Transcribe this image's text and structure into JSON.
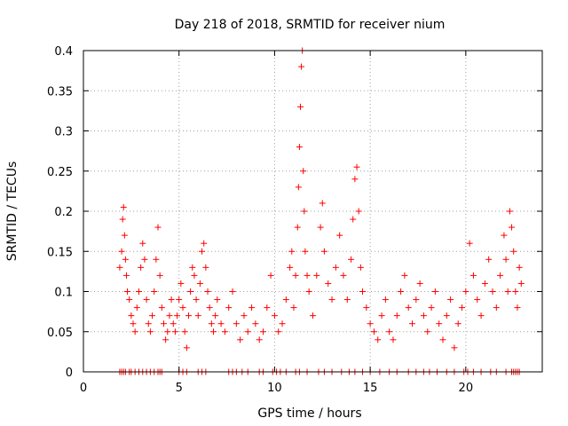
{
  "chart_data": {
    "type": "scatter",
    "title": "Day 218 of 2018, SRMTID for receiver nium",
    "xlabel": "GPS time / hours",
    "ylabel": "SRMTID / TECUs",
    "xlim": [
      0,
      24
    ],
    "ylim": [
      0,
      0.4
    ],
    "xticks": [
      0,
      5,
      10,
      15,
      20
    ],
    "xtick_labels": [
      "0",
      "5",
      "10",
      "15",
      "20"
    ],
    "yticks": [
      0,
      0.05,
      0.1,
      0.15,
      0.2,
      0.25,
      0.3,
      0.35,
      0.4
    ],
    "ytick_labels": [
      "0",
      "0.05",
      "0.1",
      "0.15",
      "0.2",
      "0.25",
      "0.3",
      "0.35",
      "0.4"
    ],
    "grid": true,
    "marker": "+",
    "color": "#ff0000",
    "series": [
      {
        "name": "SRMTID",
        "points": [
          [
            1.9,
            0.13
          ],
          [
            2.0,
            0.15
          ],
          [
            2.05,
            0.19
          ],
          [
            2.1,
            0.205
          ],
          [
            2.15,
            0.17
          ],
          [
            2.2,
            0.14
          ],
          [
            2.25,
            0.12
          ],
          [
            2.3,
            0.1
          ],
          [
            2.4,
            0.09
          ],
          [
            2.5,
            0.07
          ],
          [
            2.6,
            0.06
          ],
          [
            2.7,
            0.05
          ],
          [
            2.8,
            0.08
          ],
          [
            2.9,
            0.1
          ],
          [
            3.0,
            0.13
          ],
          [
            3.1,
            0.16
          ],
          [
            3.2,
            0.14
          ],
          [
            3.3,
            0.09
          ],
          [
            3.4,
            0.06
          ],
          [
            3.5,
            0.05
          ],
          [
            3.6,
            0.07
          ],
          [
            3.7,
            0.1
          ],
          [
            3.8,
            0.14
          ],
          [
            3.9,
            0.18
          ],
          [
            4.0,
            0.12
          ],
          [
            4.1,
            0.08
          ],
          [
            4.2,
            0.06
          ],
          [
            4.3,
            0.04
          ],
          [
            4.4,
            0.05
          ],
          [
            4.5,
            0.07
          ],
          [
            4.6,
            0.09
          ],
          [
            4.7,
            0.06
          ],
          [
            4.8,
            0.05
          ],
          [
            4.9,
            0.07
          ],
          [
            5.0,
            0.09
          ],
          [
            5.1,
            0.11
          ],
          [
            5.2,
            0.08
          ],
          [
            5.3,
            0.05
          ],
          [
            5.4,
            0.03
          ],
          [
            5.5,
            0.07
          ],
          [
            5.6,
            0.1
          ],
          [
            5.7,
            0.13
          ],
          [
            5.8,
            0.12
          ],
          [
            5.9,
            0.09
          ],
          [
            6.0,
            0.07
          ],
          [
            6.1,
            0.11
          ],
          [
            6.2,
            0.15
          ],
          [
            6.3,
            0.16
          ],
          [
            6.4,
            0.13
          ],
          [
            6.5,
            0.1
          ],
          [
            6.6,
            0.08
          ],
          [
            6.7,
            0.06
          ],
          [
            6.8,
            0.05
          ],
          [
            6.9,
            0.07
          ],
          [
            7.0,
            0.09
          ],
          [
            7.2,
            0.06
          ],
          [
            7.4,
            0.05
          ],
          [
            7.6,
            0.08
          ],
          [
            7.8,
            0.1
          ],
          [
            8.0,
            0.06
          ],
          [
            8.2,
            0.04
          ],
          [
            8.4,
            0.07
          ],
          [
            8.6,
            0.05
          ],
          [
            8.8,
            0.08
          ],
          [
            9.0,
            0.06
          ],
          [
            9.2,
            0.04
          ],
          [
            9.4,
            0.05
          ],
          [
            9.6,
            0.08
          ],
          [
            9.8,
            0.12
          ],
          [
            10.0,
            0.07
          ],
          [
            10.2,
            0.05
          ],
          [
            10.4,
            0.06
          ],
          [
            10.6,
            0.09
          ],
          [
            10.8,
            0.13
          ],
          [
            10.9,
            0.15
          ],
          [
            11.0,
            0.08
          ],
          [
            11.1,
            0.12
          ],
          [
            11.2,
            0.18
          ],
          [
            11.25,
            0.23
          ],
          [
            11.3,
            0.28
          ],
          [
            11.35,
            0.33
          ],
          [
            11.4,
            0.38
          ],
          [
            11.45,
            0.4
          ],
          [
            11.5,
            0.25
          ],
          [
            11.55,
            0.2
          ],
          [
            11.6,
            0.15
          ],
          [
            11.7,
            0.12
          ],
          [
            11.8,
            0.1
          ],
          [
            12.0,
            0.07
          ],
          [
            12.2,
            0.12
          ],
          [
            12.4,
            0.18
          ],
          [
            12.5,
            0.21
          ],
          [
            12.6,
            0.15
          ],
          [
            12.8,
            0.11
          ],
          [
            13.0,
            0.09
          ],
          [
            13.2,
            0.13
          ],
          [
            13.4,
            0.17
          ],
          [
            13.6,
            0.12
          ],
          [
            13.8,
            0.09
          ],
          [
            14.0,
            0.14
          ],
          [
            14.1,
            0.19
          ],
          [
            14.2,
            0.24
          ],
          [
            14.3,
            0.255
          ],
          [
            14.4,
            0.2
          ],
          [
            14.5,
            0.13
          ],
          [
            14.6,
            0.1
          ],
          [
            14.8,
            0.08
          ],
          [
            15.0,
            0.06
          ],
          [
            15.2,
            0.05
          ],
          [
            15.4,
            0.04
          ],
          [
            15.6,
            0.07
          ],
          [
            15.8,
            0.09
          ],
          [
            16.0,
            0.05
          ],
          [
            16.2,
            0.04
          ],
          [
            16.4,
            0.07
          ],
          [
            16.6,
            0.1
          ],
          [
            16.8,
            0.12
          ],
          [
            17.0,
            0.08
          ],
          [
            17.2,
            0.06
          ],
          [
            17.4,
            0.09
          ],
          [
            17.6,
            0.11
          ],
          [
            17.8,
            0.07
          ],
          [
            18.0,
            0.05
          ],
          [
            18.2,
            0.08
          ],
          [
            18.4,
            0.1
          ],
          [
            18.6,
            0.06
          ],
          [
            18.8,
            0.04
          ],
          [
            19.0,
            0.07
          ],
          [
            19.2,
            0.09
          ],
          [
            19.4,
            0.03
          ],
          [
            19.6,
            0.06
          ],
          [
            19.8,
            0.08
          ],
          [
            20.0,
            0.1
          ],
          [
            20.2,
            0.16
          ],
          [
            20.4,
            0.12
          ],
          [
            20.6,
            0.09
          ],
          [
            20.8,
            0.07
          ],
          [
            21.0,
            0.11
          ],
          [
            21.2,
            0.14
          ],
          [
            21.4,
            0.1
          ],
          [
            21.6,
            0.08
          ],
          [
            21.8,
            0.12
          ],
          [
            22.0,
            0.17
          ],
          [
            22.1,
            0.14
          ],
          [
            22.2,
            0.1
          ],
          [
            22.3,
            0.2
          ],
          [
            22.4,
            0.18
          ],
          [
            22.5,
            0.15
          ],
          [
            22.6,
            0.1
          ],
          [
            22.7,
            0.08
          ],
          [
            22.8,
            0.13
          ],
          [
            22.9,
            0.11
          ]
        ]
      }
    ],
    "zero_markers_x": [
      1.9,
      2.0,
      2.1,
      2.2,
      2.4,
      2.5,
      2.7,
      2.9,
      3.1,
      3.3,
      3.5,
      3.7,
      3.9,
      4.0,
      4.1,
      5.0,
      5.2,
      5.4,
      6.0,
      6.2,
      6.4,
      7.6,
      7.8,
      8.0,
      8.3,
      8.6,
      9.2,
      9.4,
      9.9,
      10.1,
      10.3,
      10.6,
      11.1,
      11.3,
      11.7,
      12.3,
      12.6,
      13.0,
      13.5,
      13.9,
      14.2,
      14.6,
      15.0,
      15.5,
      16.0,
      16.4,
      17.0,
      17.4,
      17.8,
      18.1,
      18.5,
      19.0,
      19.4,
      19.9,
      20.1,
      20.4,
      20.8,
      21.3,
      21.6,
      22.1,
      22.4,
      22.5,
      22.6,
      22.7,
      22.8
    ]
  }
}
